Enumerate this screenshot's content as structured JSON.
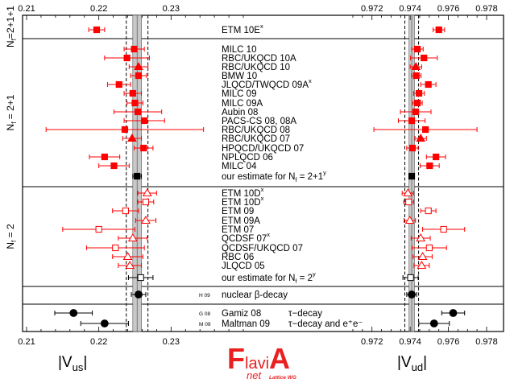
{
  "chart_data": {
    "type": "scatter",
    "title": "",
    "panels": [
      {
        "name": "left",
        "xlim": [
          0.21,
          0.24
        ],
        "tick_labels": [
          "0.21",
          "0.22",
          "0.23"
        ],
        "tick_values": [
          0.21,
          0.22,
          0.23
        ],
        "xlabel": "|V",
        "xlabel_sub": "us",
        "band": {
          "center": 0.2253,
          "inner": [
            0.2247,
            0.2259
          ],
          "outer": [
            0.2238,
            0.2268
          ]
        }
      },
      {
        "name": "right",
        "xlim": [
          0.971,
          0.978
        ],
        "tick_labels": [
          "0.972",
          "0.974",
          "0.976",
          "0.978"
        ],
        "tick_values": [
          0.972,
          0.974,
          0.976,
          0.978
        ],
        "xlabel": "|V",
        "xlabel_sub": "ud",
        "band": {
          "center": 0.97408,
          "inner": [
            0.97394,
            0.97422
          ],
          "outer": [
            0.97372,
            0.97444
          ]
        }
      }
    ],
    "groups": [
      {
        "label": "N",
        "sub": "f",
        "suffix": "=2+1+1"
      },
      {
        "label": "N",
        "sub": "f",
        "suffix": " = 2+1"
      },
      {
        "label": "N",
        "sub": "f",
        "suffix": " = 2"
      }
    ],
    "series": [
      {
        "name": "ETM 10E",
        "sup": "x",
        "group": 0,
        "marker": "square",
        "filled": true,
        "color": "#ff0000",
        "us": 0.2197,
        "us_err": 0.0011,
        "ud": 0.9755,
        "ud_err": 0.0003
      },
      {
        "name": "MILC 10",
        "group": 1,
        "marker": "square",
        "filled": true,
        "color": "#ff0000",
        "us": 0.2249,
        "us_err": 0.0014,
        "ud": 0.97438,
        "ud_err": 0.0003
      },
      {
        "name": "RBC/UKQCD 10A",
        "group": 1,
        "marker": "square",
        "filled": true,
        "color": "#ff0000",
        "us": 0.2239,
        "us_err": 0.0031,
        "ud": 0.97472,
        "ud_err": 0.0007
      },
      {
        "name": "RBC/UKQCD 10",
        "group": 1,
        "marker": "triangle",
        "filled": true,
        "color": "#ff0000",
        "us": 0.2255,
        "us_err": 0.0013,
        "ud": 0.9743,
        "ud_err": 0.0003
      },
      {
        "name": "BMW 10",
        "group": 1,
        "marker": "square",
        "filled": true,
        "color": "#ff0000",
        "us": 0.2255,
        "us_err": 0.0011,
        "ud": 0.97432,
        "ud_err": 0.00025
      },
      {
        "name": "JLQCD/TWQCD 09A",
        "sup": "x",
        "group": 1,
        "marker": "square",
        "filled": true,
        "color": "#ff0000",
        "us": 0.2228,
        "us_err": 0.0016,
        "ud": 0.97495,
        "ud_err": 0.0004
      },
      {
        "name": "MILC 09",
        "group": 1,
        "marker": "square",
        "filled": true,
        "color": "#ff0000",
        "us": 0.2247,
        "us_err": 0.0012,
        "ud": 0.97446,
        "ud_err": 0.00028
      },
      {
        "name": "MILC 09A",
        "group": 1,
        "marker": "square",
        "filled": true,
        "color": "#ff0000",
        "us": 0.225,
        "us_err": 0.0011,
        "ud": 0.97438,
        "ud_err": 0.00025
      },
      {
        "name": "Aubin 08",
        "group": 1,
        "marker": "square",
        "filled": true,
        "color": "#ff0000",
        "us": 0.2254,
        "us_err": 0.0033,
        "ud": 0.97429,
        "ud_err": 0.0008
      },
      {
        "name": "PACS-CS 08, 08A",
        "group": 1,
        "marker": "square",
        "filled": true,
        "color": "#ff0000",
        "us": 0.2263,
        "us_err": 0.0028,
        "ud": 0.97408,
        "ud_err": 0.0007
      },
      {
        "name": "RBC/UKQCD 08",
        "group": 1,
        "marker": "square",
        "filled": true,
        "color": "#ff0000",
        "us": 0.2236,
        "us_err": 0.0109,
        "ud": 0.9748,
        "ud_err": 0.0027
      },
      {
        "name": "RBC/UKQCD 07",
        "group": 1,
        "marker": "triangle",
        "filled": true,
        "color": "#ff0000",
        "us": 0.2246,
        "us_err": 0.0013,
        "ud": 0.97455,
        "ud_err": 0.0003
      },
      {
        "name": "HPQCD/UKQCD 07",
        "group": 1,
        "marker": "square",
        "filled": true,
        "color": "#ff0000",
        "us": 0.2262,
        "us_err": 0.0013,
        "ud": 0.97412,
        "ud_err": 0.0003
      },
      {
        "name": "NPLQCD 06",
        "group": 1,
        "marker": "square",
        "filled": true,
        "color": "#ff0000",
        "us": 0.2208,
        "us_err": 0.0021,
        "ud": 0.97535,
        "ud_err": 0.0005
      },
      {
        "name": "MILC 04",
        "group": 1,
        "marker": "square",
        "filled": true,
        "color": "#ff0000",
        "us": 0.2221,
        "us_err": 0.0021,
        "ud": 0.97502,
        "ud_err": 0.0005
      },
      {
        "name": "our estimate for N",
        "sub": "f",
        "suffix": " = 2+1",
        "sup": "y",
        "group": 1,
        "marker": "square",
        "filled": true,
        "color": "#000000",
        "us": 0.2253,
        "us_err": 0.0006,
        "ud": 0.97408,
        "ud_err": 0.00014
      },
      {
        "name": "ETM 10D",
        "sup": "x",
        "group": 2,
        "marker": "triangle",
        "filled": false,
        "color": "#ff0000",
        "us": 0.2267,
        "us_err": 0.0013,
        "ud": 0.97388,
        "ud_err": 0.0003
      },
      {
        "name": "ETM 10D",
        "sup": "x",
        "group": 2,
        "marker": "square",
        "filled": false,
        "color": "#ff0000",
        "us": 0.2265,
        "us_err": 0.0011,
        "ud": 0.97392,
        "ud_err": 0.00026
      },
      {
        "name": "ETM 09",
        "group": 2,
        "marker": "square",
        "filled": false,
        "color": "#ff0000",
        "us": 0.2237,
        "us_err": 0.0018,
        "ud": 0.97495,
        "ud_err": 0.0004
      },
      {
        "name": "ETM 09A",
        "group": 2,
        "marker": "triangle",
        "filled": false,
        "color": "#ff0000",
        "us": 0.2265,
        "us_err": 0.0014,
        "ud": 0.97398,
        "ud_err": 0.0003
      },
      {
        "name": "ETM 07",
        "group": 2,
        "marker": "square",
        "filled": false,
        "color": "#ff0000",
        "us": 0.22,
        "us_err": 0.005,
        "ud": 0.97575,
        "ud_err": 0.0011
      },
      {
        "name": "QCDSF 07",
        "sup": "x",
        "group": 2,
        "marker": "triangle",
        "filled": false,
        "color": "#ff0000",
        "us": 0.2247,
        "us_err": 0.002,
        "ud": 0.97455,
        "ud_err": 0.0005
      },
      {
        "name": "QCDSF/UKQCD 07",
        "group": 2,
        "marker": "square",
        "filled": false,
        "color": "#ff0000",
        "us": 0.2223,
        "us_err": 0.004,
        "ud": 0.975,
        "ud_err": 0.0009
      },
      {
        "name": "RBC 06",
        "group": 2,
        "marker": "triangle",
        "filled": false,
        "color": "#ff0000",
        "us": 0.224,
        "us_err": 0.0021,
        "ud": 0.97465,
        "ud_err": 0.0005
      },
      {
        "name": "JLQCD 05",
        "group": 2,
        "marker": "triangle",
        "filled": false,
        "color": "#ff0000",
        "us": 0.2243,
        "us_err": 0.0016,
        "ud": 0.9746,
        "ud_err": 0.0004
      },
      {
        "name": "our estimate for N",
        "sub": "f",
        "suffix": " = 2",
        "sup": "y",
        "group": 2,
        "marker": "square",
        "filled": false,
        "color": "#000000",
        "us": 0.2258,
        "us_err": 0.0017,
        "ud": 0.97402,
        "ud_err": 0.0004
      },
      {
        "name": "nuclear β-decay",
        "group": 3,
        "marker": "circle",
        "filled": true,
        "color": "#000000",
        "tag": "H 09",
        "us": 0.2255,
        "us_err": 0.001,
        "ud": 0.97408,
        "ud_err": 0.00026
      },
      {
        "name": "Gamiz 08",
        "group": 4,
        "marker": "circle",
        "filled": true,
        "color": "#000000",
        "tag": "G 08",
        "note": "τ−decay",
        "us": 0.2165,
        "us_err": 0.0026,
        "ud": 0.97625,
        "ud_err": 0.0006
      },
      {
        "name": "Maltman 09",
        "group": 4,
        "marker": "circle",
        "filled": true,
        "color": "#000000",
        "tag": "M 09",
        "note": "τ−decay and e⁺e⁻",
        "us": 0.2208,
        "us_err": 0.0033,
        "ud": 0.97525,
        "ud_err": 0.0008
      }
    ]
  },
  "logo": {
    "main": "FlaviA",
    "sub1": "net",
    "sub2": "Lattice WG"
  }
}
